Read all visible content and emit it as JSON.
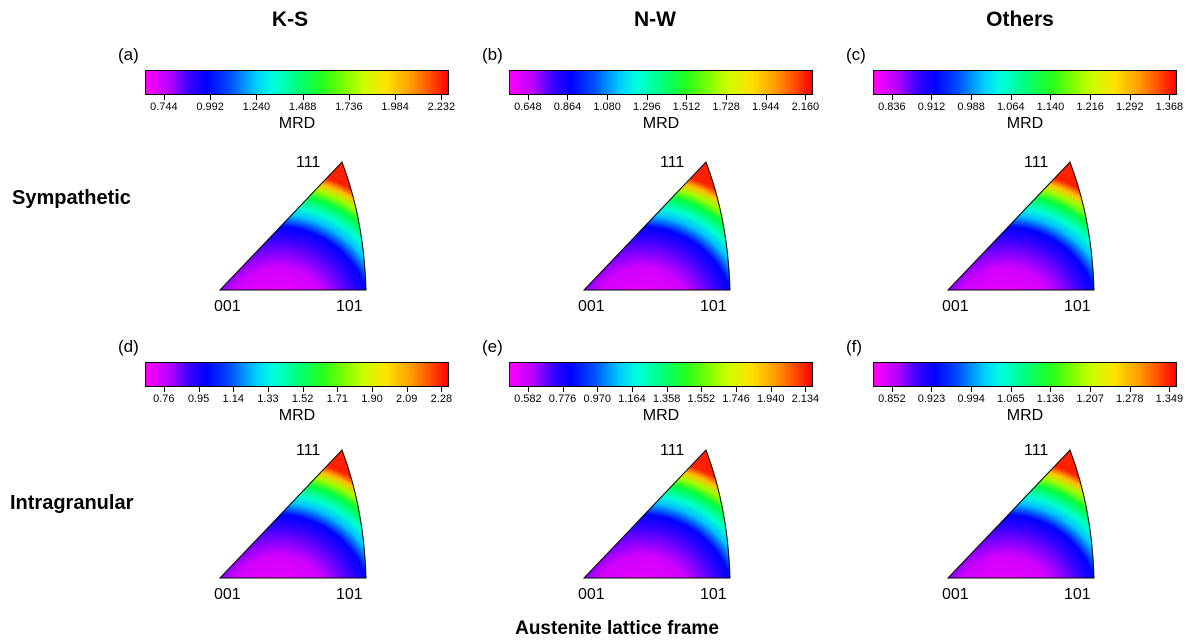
{
  "columns": [
    {
      "title": "K-S"
    },
    {
      "title": "N-W"
    },
    {
      "title": "Others"
    }
  ],
  "rows": [
    {
      "title": "Sympathetic"
    },
    {
      "title": "Intragranular"
    }
  ],
  "panels": [
    {
      "label": "(a)",
      "colorbar_label": "MRD",
      "ticks": [
        "0.744",
        "0.992",
        "1.240",
        "1.488",
        "1.736",
        "1.984",
        "2.232"
      ],
      "poles": [
        "111",
        "001",
        "101"
      ]
    },
    {
      "label": "(b)",
      "colorbar_label": "MRD",
      "ticks": [
        "0.648",
        "0.864",
        "1.080",
        "1.296",
        "1.512",
        "1.728",
        "1.944",
        "2.160"
      ],
      "poles": [
        "111",
        "001",
        "101"
      ]
    },
    {
      "label": "(c)",
      "colorbar_label": "MRD",
      "ticks": [
        "0.836",
        "0.912",
        "0.988",
        "1.064",
        "1.140",
        "1.216",
        "1.292",
        "1.368"
      ],
      "poles": [
        "111",
        "001",
        "101"
      ]
    },
    {
      "label": "(d)",
      "colorbar_label": "MRD",
      "ticks": [
        "0.76",
        "0.95",
        "1.14",
        "1.33",
        "1.52",
        "1.71",
        "1.90",
        "2.09",
        "2.28"
      ],
      "poles": [
        "111",
        "001",
        "101"
      ]
    },
    {
      "label": "(e)",
      "colorbar_label": "MRD",
      "ticks": [
        "0.582",
        "0.776",
        "0.970",
        "1.164",
        "1.358",
        "1.552",
        "1.746",
        "1.940",
        "2.134"
      ],
      "poles": [
        "111",
        "001",
        "101"
      ]
    },
    {
      "label": "(f)",
      "colorbar_label": "MRD",
      "ticks": [
        "0.852",
        "0.923",
        "0.994",
        "1.065",
        "1.136",
        "1.207",
        "1.278",
        "1.349"
      ],
      "poles": [
        "111",
        "001",
        "101"
      ]
    }
  ],
  "footer": "Austenite lattice frame",
  "colormap": [
    "#ff00ff",
    "#0000ff",
    "#00ffff",
    "#00ff00",
    "#ffff00",
    "#ff0000"
  ]
}
